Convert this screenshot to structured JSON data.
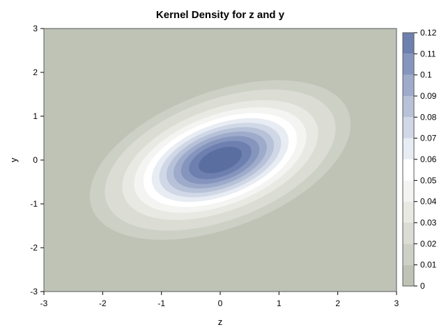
{
  "chart_data": {
    "type": "contour",
    "title": "Kernel Density for z and y",
    "xlabel": "z",
    "ylabel": "y",
    "xlim": [
      -3,
      3
    ],
    "ylim": [
      -3,
      3
    ],
    "xticks": [
      "-3",
      "-2",
      "-1",
      "0",
      "1",
      "2",
      "3"
    ],
    "yticks": [
      "-3",
      "-2",
      "-1",
      "0",
      "1",
      "2",
      "3"
    ],
    "legend": {
      "position": "right",
      "levels": [
        0,
        0.01,
        0.02,
        0.03,
        0.04,
        0.05,
        0.06,
        0.07,
        0.08,
        0.09,
        0.1,
        0.11,
        0.12
      ],
      "labels": [
        "0",
        "0.01",
        "0.02",
        "0.03",
        "0.04",
        "0.05",
        "0.06",
        "0.07",
        "0.08",
        "0.09",
        "0.1",
        "0.11",
        "0.12"
      ]
    },
    "density_peak": {
      "x": 0,
      "y": 0,
      "value": 0.12
    },
    "contour_levels": [
      0.005,
      0.01,
      0.02,
      0.03,
      0.04,
      0.05,
      0.06,
      0.07,
      0.08,
      0.09,
      0.1,
      0.11
    ],
    "colors": [
      "#bec3b6",
      "#ccd0c5",
      "#dbddd4",
      "#e8e9e3",
      "#f4f4f2",
      "#ffffff",
      "#e8ecf3",
      "#d0d7e6",
      "#b7c2d8",
      "#9eabcb",
      "#8595bd",
      "#6d80af",
      "#5a6f9f"
    ]
  }
}
